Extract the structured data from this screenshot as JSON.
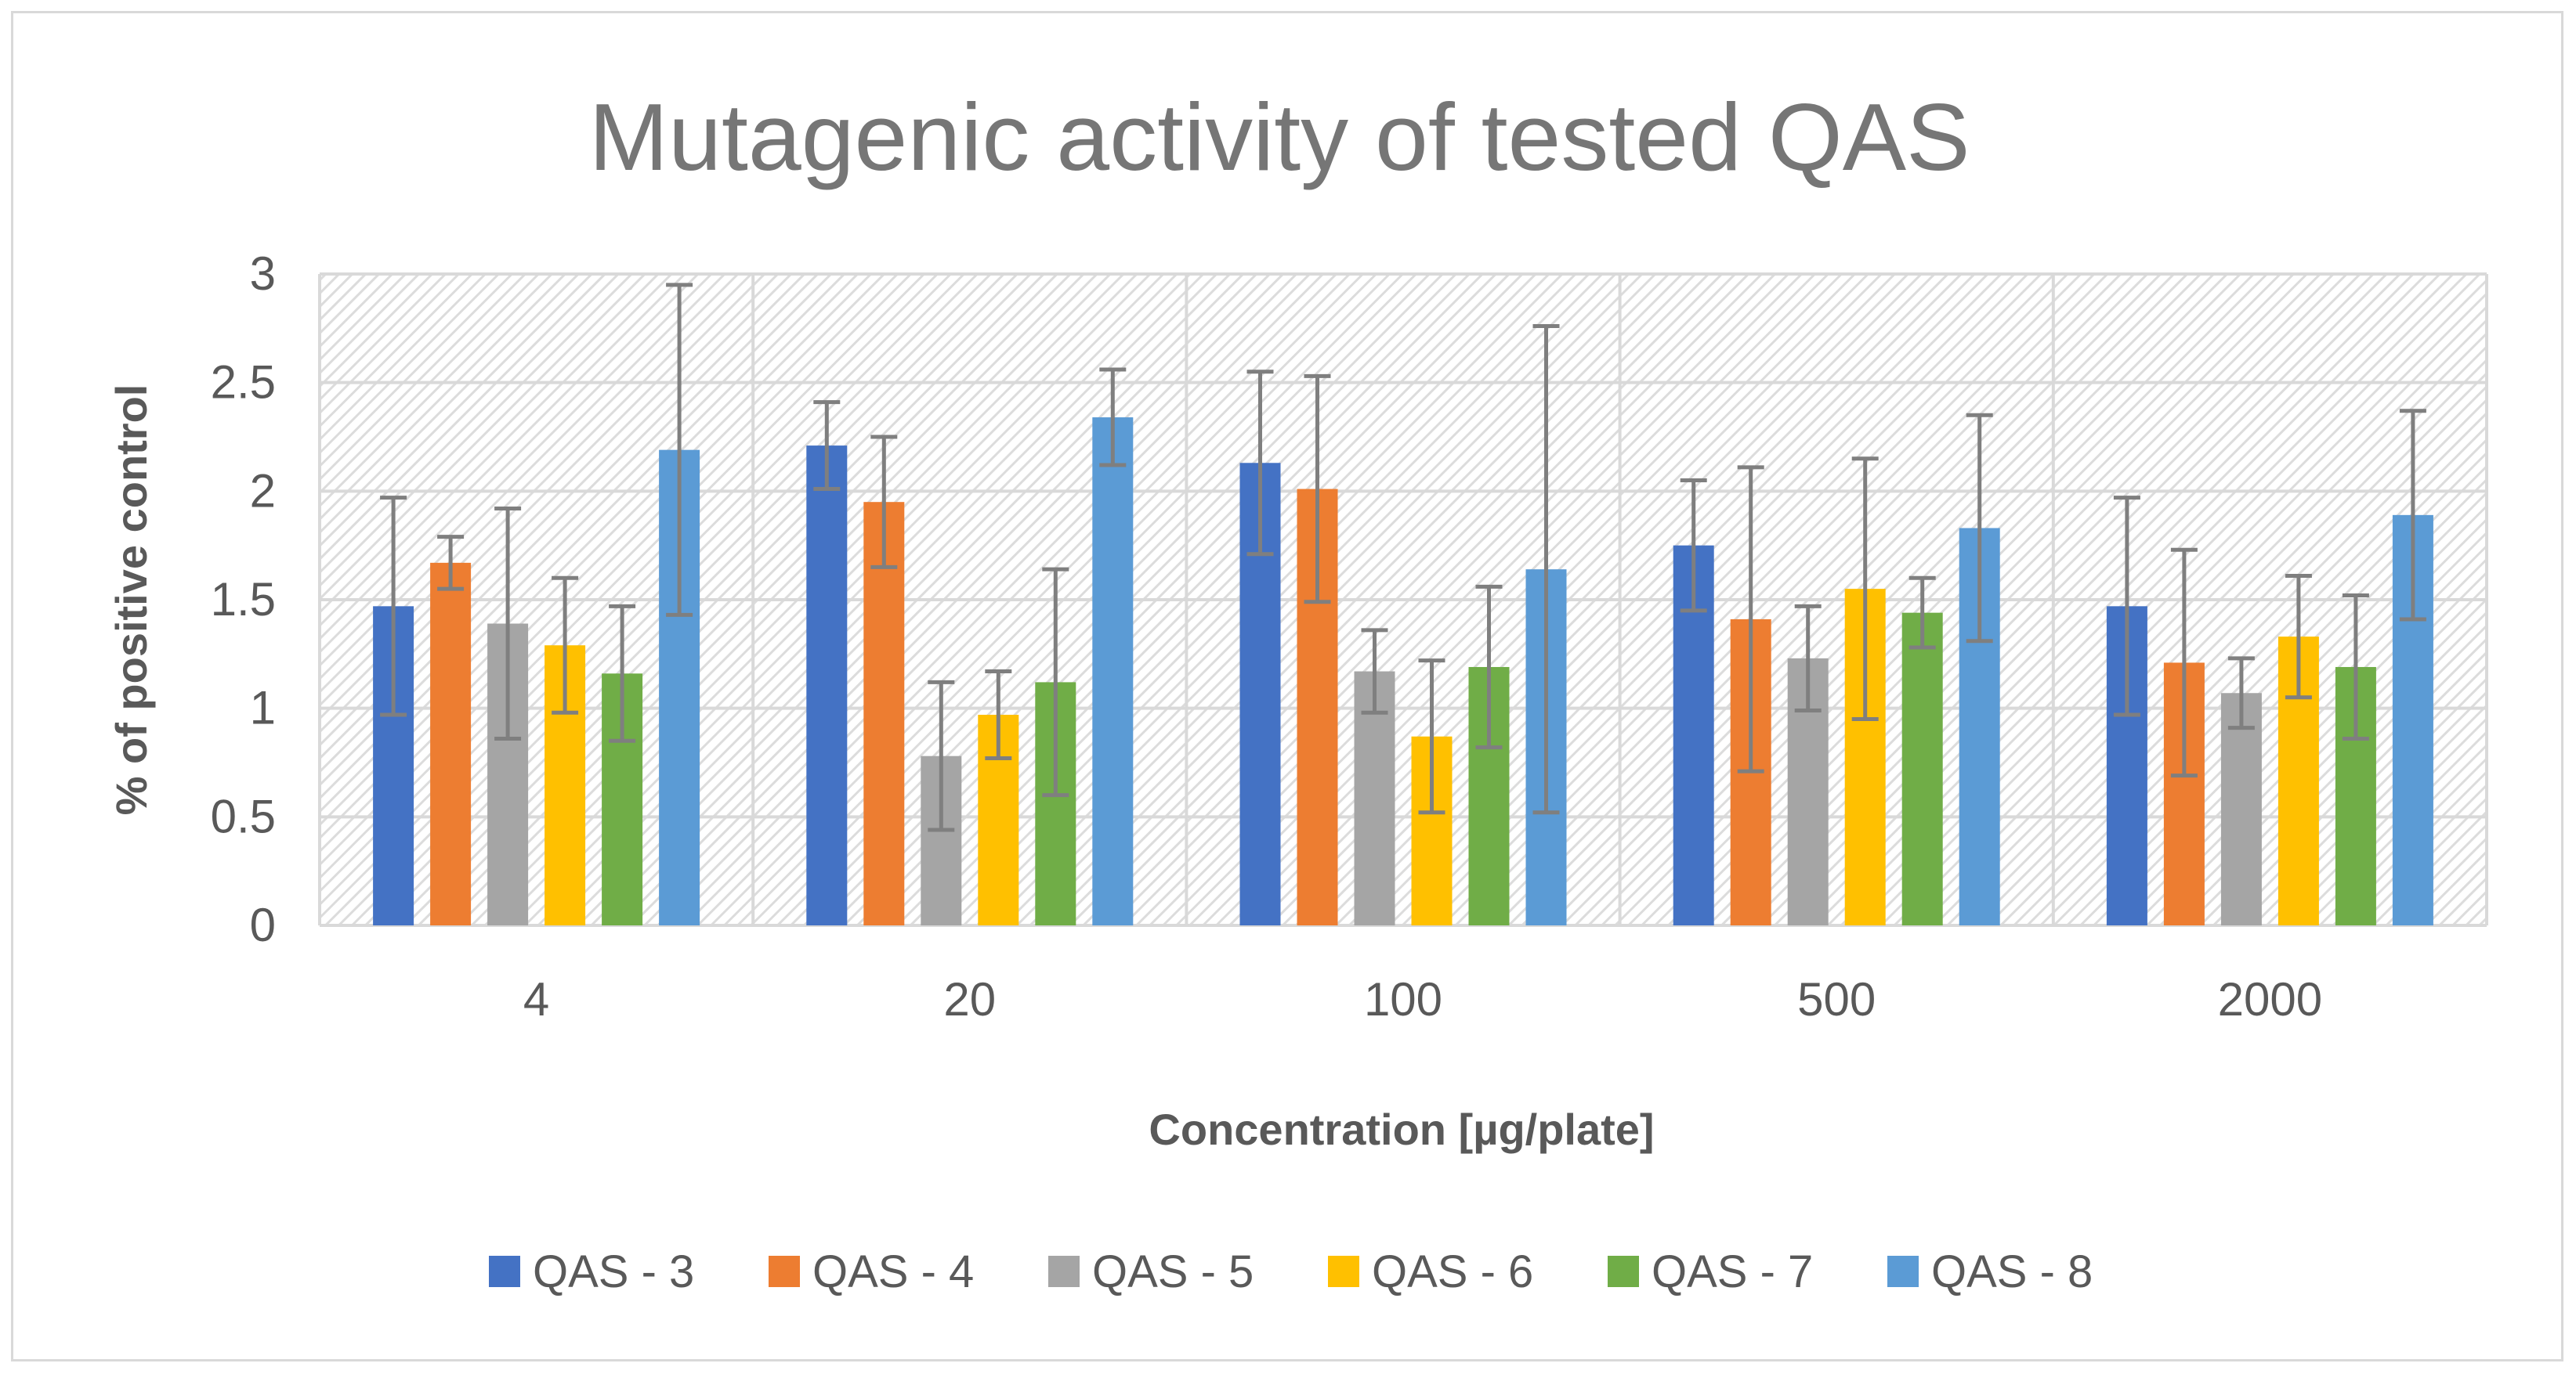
{
  "chart_data": {
    "type": "bar",
    "title": "Mutagenic activity of tested QAS",
    "xlabel": "Concentration [µg/plate]",
    "ylabel": "% of positive control",
    "ylim": [
      0,
      3
    ],
    "yticks": [
      "0",
      "0.5",
      "1",
      "1.5",
      "2",
      "2.5",
      "3"
    ],
    "ytick_values": [
      0,
      0.5,
      1,
      1.5,
      2,
      2.5,
      3
    ],
    "categories": [
      "4",
      "20",
      "100",
      "500",
      "2000"
    ],
    "grid": true,
    "legend_position": "bottom",
    "series": [
      {
        "name": "QAS - 3",
        "color": "#4472c4",
        "values": [
          1.47,
          2.21,
          2.13,
          1.75,
          1.47
        ],
        "errors": [
          0.5,
          0.2,
          0.42,
          0.3,
          0.5
        ]
      },
      {
        "name": "QAS - 4",
        "color": "#ed7d31",
        "values": [
          1.67,
          1.95,
          2.01,
          1.41,
          1.21
        ],
        "errors": [
          0.12,
          0.3,
          0.52,
          0.7,
          0.52
        ]
      },
      {
        "name": "QAS - 5",
        "color": "#a5a5a5",
        "values": [
          1.39,
          0.78,
          1.17,
          1.23,
          1.07
        ],
        "errors": [
          0.53,
          0.34,
          0.19,
          0.24,
          0.16
        ]
      },
      {
        "name": "QAS - 6",
        "color": "#ffc000",
        "values": [
          1.29,
          0.97,
          0.87,
          1.55,
          1.33
        ],
        "errors": [
          0.31,
          0.2,
          0.35,
          0.6,
          0.28
        ]
      },
      {
        "name": "QAS - 7",
        "color": "#70ad47",
        "values": [
          1.16,
          1.12,
          1.19,
          1.44,
          1.19
        ],
        "errors": [
          0.31,
          0.52,
          0.37,
          0.16,
          0.33
        ]
      },
      {
        "name": "QAS - 8",
        "color": "#5b9bd5",
        "values": [
          2.19,
          2.34,
          1.64,
          1.83,
          1.89
        ],
        "errors": [
          0.76,
          0.22,
          1.12,
          0.52,
          0.48
        ]
      }
    ]
  }
}
